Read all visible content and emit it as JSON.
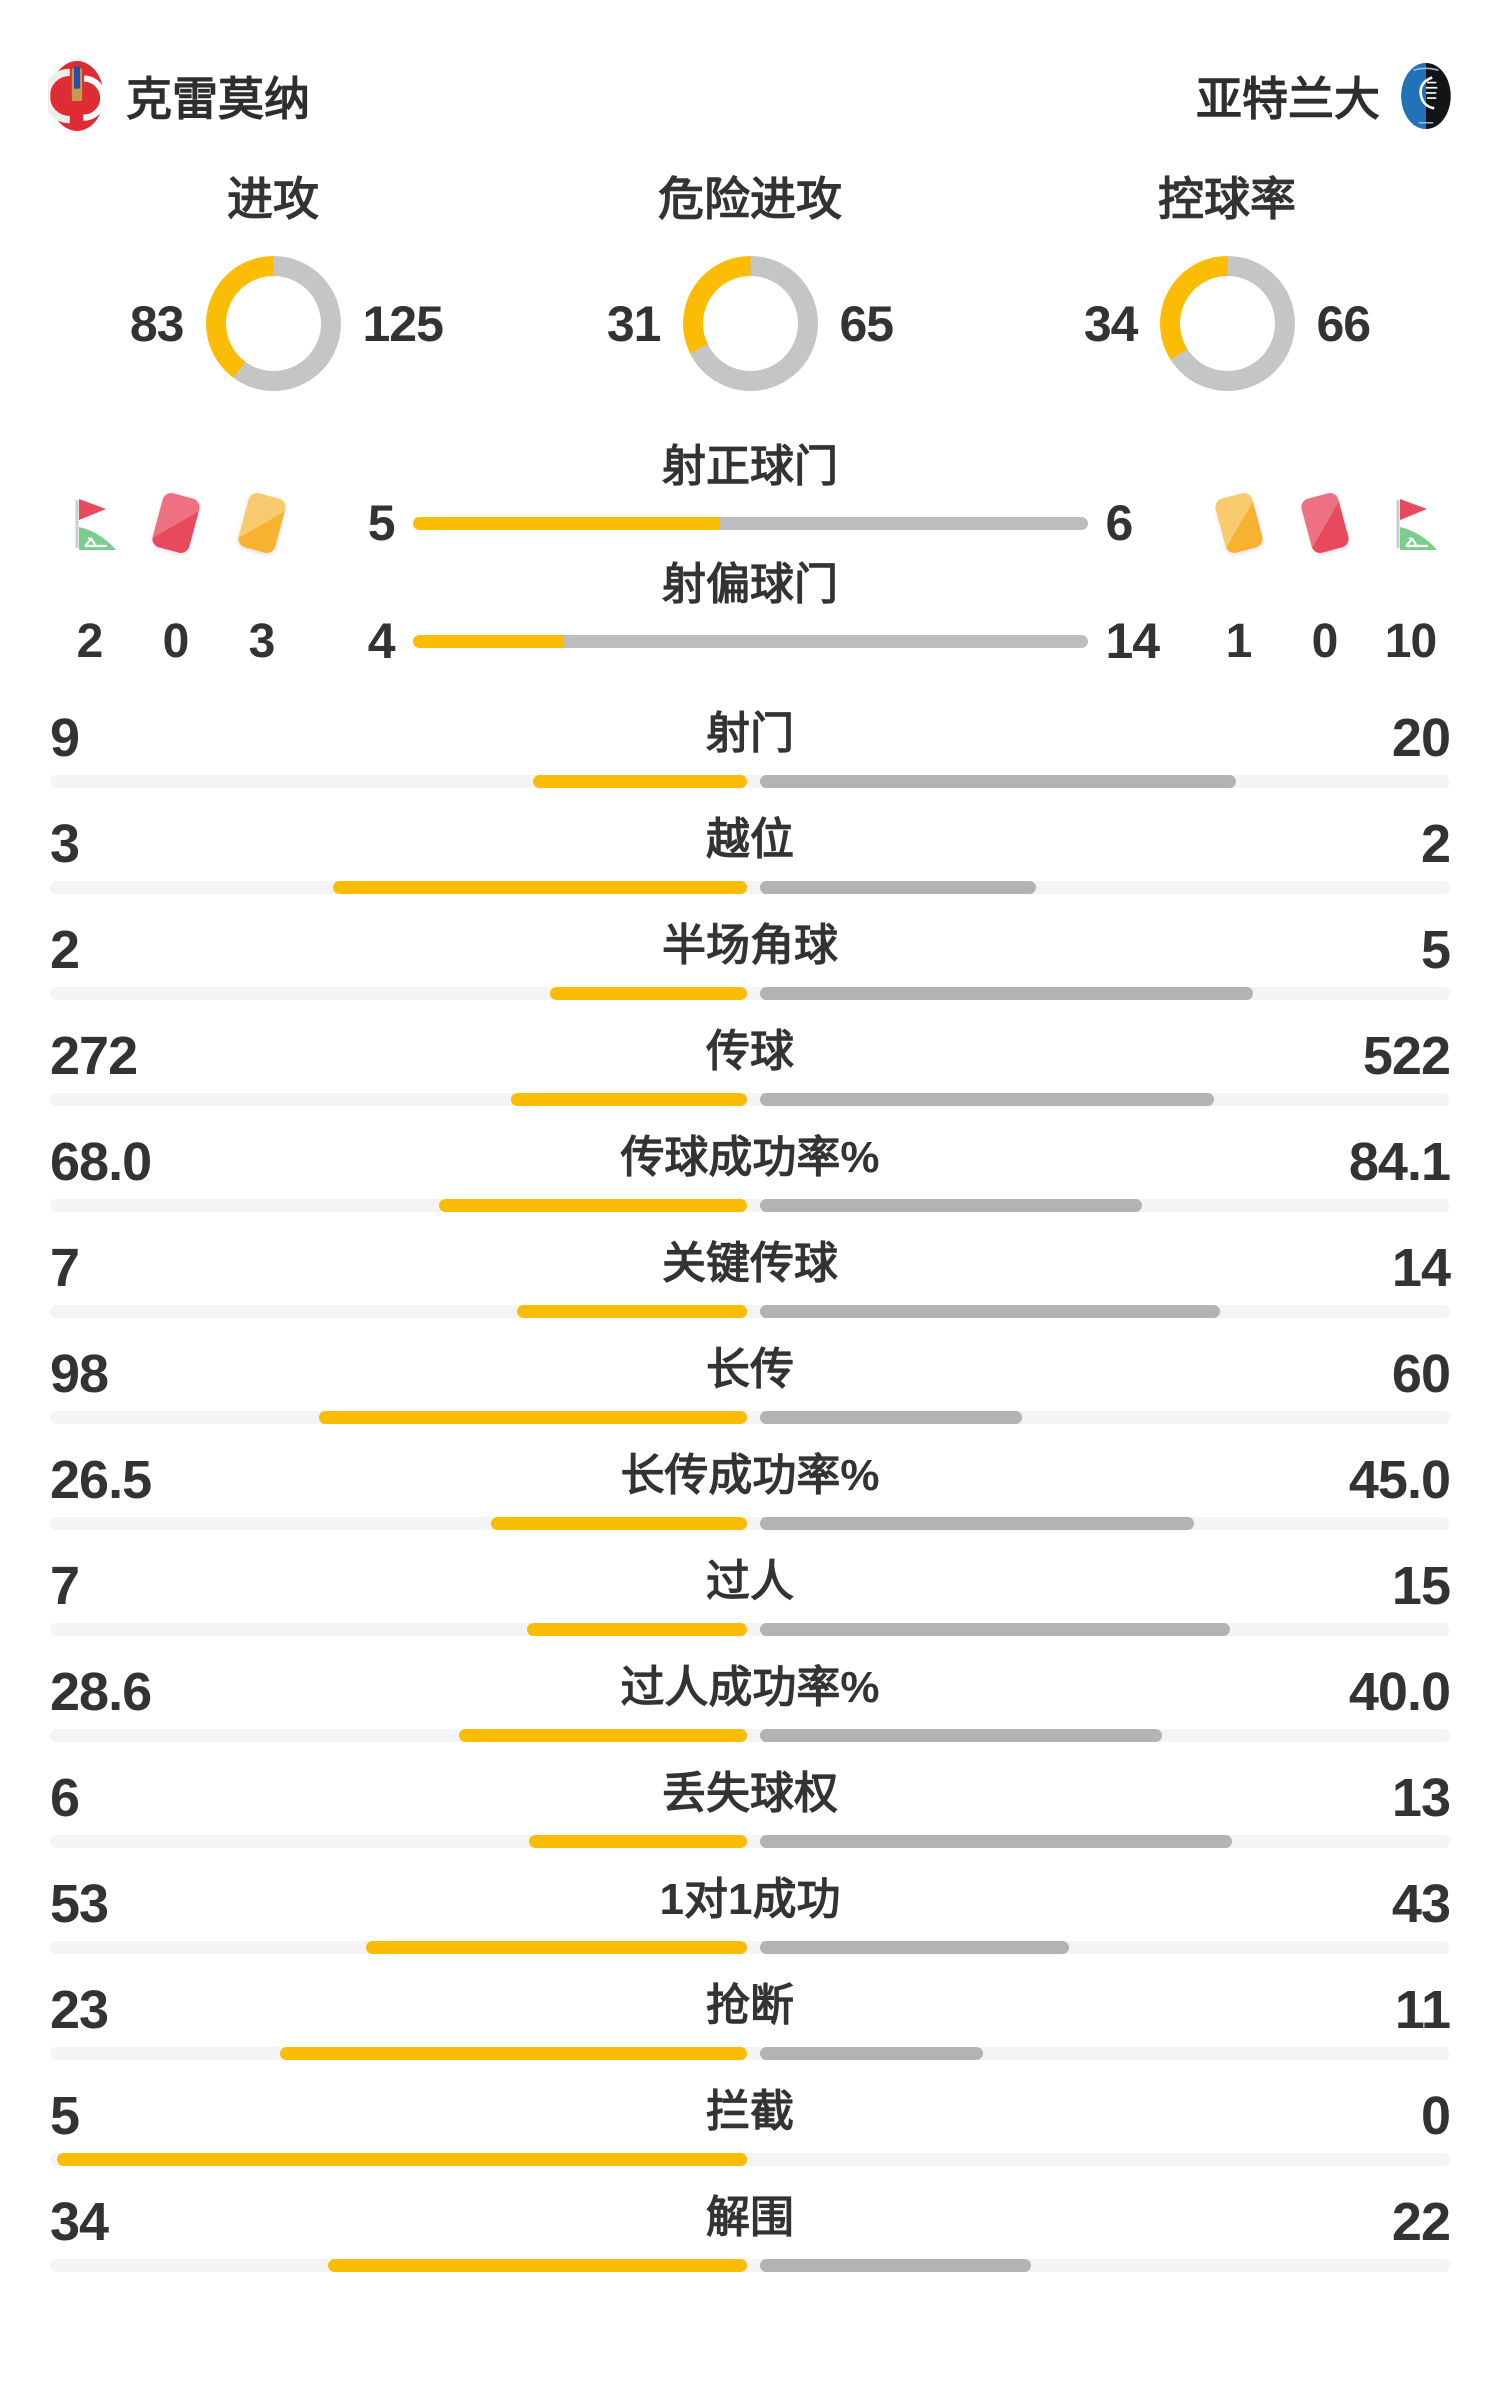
{
  "header": {
    "home_name": "克雷莫纳",
    "away_name": "亚特兰大"
  },
  "colors": {
    "home_accent": "#FBBC05",
    "away_bar": "#B3B3B3",
    "shot_bar_gray": "#BDBDBD",
    "bar_track": "#F4F4F5",
    "donut_gray": "#C5C5C5",
    "text": "#333333",
    "red_card": "#E8495C",
    "yellow_card": "#F7B32F",
    "flag_green": "#7BCE8A"
  },
  "icons": [
    "corner-flag-icon",
    "red-card-icon",
    "yellow-card-icon"
  ],
  "discipline": {
    "home": {
      "corner_kicks": "2",
      "red_cards": "0",
      "yellow_cards": "3"
    },
    "away": {
      "yellow_cards": "1",
      "red_cards": "0",
      "corner_kicks": "10"
    }
  },
  "chart_data": {
    "type": "comparison-stats",
    "home_team": "克雷莫纳",
    "away_team": "亚特兰大",
    "donuts": [
      {
        "type": "donut",
        "title": "进攻",
        "home": 83,
        "away": 125
      },
      {
        "type": "donut",
        "title": "危险进攻",
        "home": 31,
        "away": 65
      },
      {
        "type": "donut",
        "title": "控球率",
        "home": 34,
        "away": 66
      }
    ],
    "shot_bars": [
      {
        "type": "bar",
        "title": "射正球门",
        "home": 5,
        "away": 6
      },
      {
        "type": "bar",
        "title": "射偏球门",
        "home": 4,
        "away": 14
      }
    ],
    "stats": [
      {
        "label": "射门",
        "home": "9",
        "away": "20"
      },
      {
        "label": "越位",
        "home": "3",
        "away": "2"
      },
      {
        "label": "半场角球",
        "home": "2",
        "away": "5"
      },
      {
        "label": "传球",
        "home": "272",
        "away": "522"
      },
      {
        "label": "传球成功率%",
        "home": "68.0",
        "away": "84.1"
      },
      {
        "label": "关键传球",
        "home": "7",
        "away": "14"
      },
      {
        "label": "长传",
        "home": "98",
        "away": "60"
      },
      {
        "label": "长传成功率%",
        "home": "26.5",
        "away": "45.0"
      },
      {
        "label": "过人",
        "home": "7",
        "away": "15"
      },
      {
        "label": "过人成功率%",
        "home": "28.6",
        "away": "40.0"
      },
      {
        "label": "丢失球权",
        "home": "6",
        "away": "13"
      },
      {
        "label": "1对1成功",
        "home": "53",
        "away": "43"
      },
      {
        "label": "抢断",
        "home": "23",
        "away": "11"
      },
      {
        "label": "拦截",
        "home": "5",
        "away": "0"
      },
      {
        "label": "解围",
        "home": "34",
        "away": "22"
      }
    ]
  }
}
